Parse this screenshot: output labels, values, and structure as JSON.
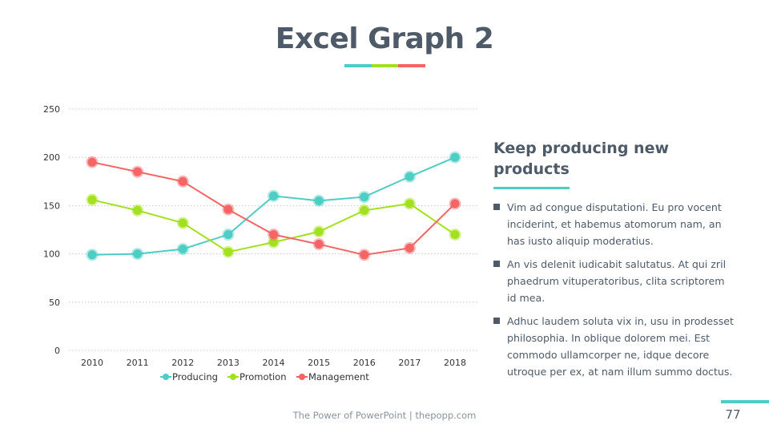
{
  "slide": {
    "title": "Excel Graph 2",
    "title_bar_colors": [
      "#4ecdc4",
      "#a3e01e",
      "#f56565"
    ],
    "side_heading": "Keep producing new products",
    "bullets": [
      "Vim ad congue disputationi. Eu pro vocent inciderint, et habemus atomorum nam, an has iusto aliquip moderatius.",
      "An vis delenit iudicabit salutatus. At qui zril phaedrum vituperatoribus, clita scriptorem id mea.",
      "Adhuc laudem soluta vix in, usu in prodesset philosophia. In oblique dolorem mei. Est commodo ullamcorper ne, idque decore utroque per ex, at nam illum summo doctus."
    ],
    "footer": "The Power of PowerPoint | thepopp.com",
    "page_number": "77",
    "accent_color": "#4ecdc4"
  },
  "chart_data": {
    "type": "line",
    "title": "",
    "xlabel": "",
    "ylabel": "",
    "categories": [
      "2010",
      "2011",
      "2012",
      "2013",
      "2014",
      "2015",
      "2016",
      "2017",
      "2018"
    ],
    "ylim": [
      0,
      250
    ],
    "yticks": [
      0,
      50,
      100,
      150,
      200,
      250
    ],
    "grid": true,
    "legend_position": "bottom",
    "series": [
      {
        "name": "Producing",
        "color": "#4ecdc4",
        "values": [
          99,
          100,
          105,
          120,
          160,
          155,
          159,
          180,
          200
        ]
      },
      {
        "name": "Promotion",
        "color": "#a3e01e",
        "values": [
          156,
          145,
          132,
          102,
          112,
          123,
          145,
          152,
          120
        ]
      },
      {
        "name": "Management",
        "color": "#f56565",
        "values": [
          195,
          185,
          175,
          146,
          120,
          110,
          99,
          106,
          152
        ]
      }
    ]
  }
}
